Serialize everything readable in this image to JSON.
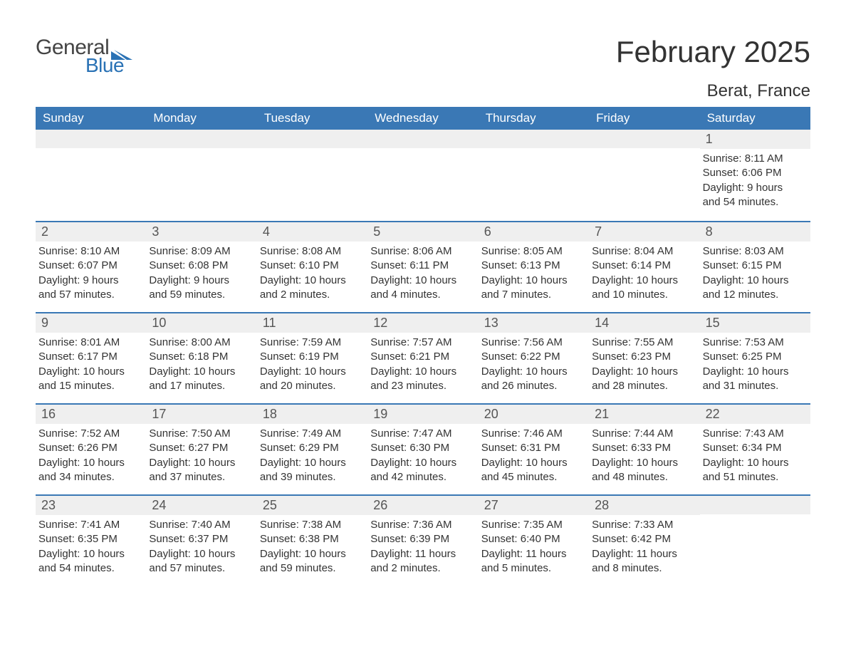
{
  "logo": {
    "general": "General",
    "blue": "Blue",
    "shape_color": "#2a72b5"
  },
  "title": "February 2025",
  "location": "Berat, France",
  "colors": {
    "header_bg": "#3a78b5",
    "header_text": "#ffffff",
    "band_bg": "#efefef",
    "text": "#333333",
    "week_divider": "#3a78b5",
    "page_bg": "#ffffff"
  },
  "fonts": {
    "title_size_pt": 32,
    "location_size_pt": 18,
    "weekday_size_pt": 13,
    "daynum_size_pt": 14,
    "body_size_pt": 11
  },
  "weekdays": [
    "Sunday",
    "Monday",
    "Tuesday",
    "Wednesday",
    "Thursday",
    "Friday",
    "Saturday"
  ],
  "weeks": [
    [
      {
        "n": "",
        "sunrise": "",
        "sunset": "",
        "daylight": ""
      },
      {
        "n": "",
        "sunrise": "",
        "sunset": "",
        "daylight": ""
      },
      {
        "n": "",
        "sunrise": "",
        "sunset": "",
        "daylight": ""
      },
      {
        "n": "",
        "sunrise": "",
        "sunset": "",
        "daylight": ""
      },
      {
        "n": "",
        "sunrise": "",
        "sunset": "",
        "daylight": ""
      },
      {
        "n": "",
        "sunrise": "",
        "sunset": "",
        "daylight": ""
      },
      {
        "n": "1",
        "sunrise": "Sunrise: 8:11 AM",
        "sunset": "Sunset: 6:06 PM",
        "daylight": "Daylight: 9 hours and 54 minutes."
      }
    ],
    [
      {
        "n": "2",
        "sunrise": "Sunrise: 8:10 AM",
        "sunset": "Sunset: 6:07 PM",
        "daylight": "Daylight: 9 hours and 57 minutes."
      },
      {
        "n": "3",
        "sunrise": "Sunrise: 8:09 AM",
        "sunset": "Sunset: 6:08 PM",
        "daylight": "Daylight: 9 hours and 59 minutes."
      },
      {
        "n": "4",
        "sunrise": "Sunrise: 8:08 AM",
        "sunset": "Sunset: 6:10 PM",
        "daylight": "Daylight: 10 hours and 2 minutes."
      },
      {
        "n": "5",
        "sunrise": "Sunrise: 8:06 AM",
        "sunset": "Sunset: 6:11 PM",
        "daylight": "Daylight: 10 hours and 4 minutes."
      },
      {
        "n": "6",
        "sunrise": "Sunrise: 8:05 AM",
        "sunset": "Sunset: 6:13 PM",
        "daylight": "Daylight: 10 hours and 7 minutes."
      },
      {
        "n": "7",
        "sunrise": "Sunrise: 8:04 AM",
        "sunset": "Sunset: 6:14 PM",
        "daylight": "Daylight: 10 hours and 10 minutes."
      },
      {
        "n": "8",
        "sunrise": "Sunrise: 8:03 AM",
        "sunset": "Sunset: 6:15 PM",
        "daylight": "Daylight: 10 hours and 12 minutes."
      }
    ],
    [
      {
        "n": "9",
        "sunrise": "Sunrise: 8:01 AM",
        "sunset": "Sunset: 6:17 PM",
        "daylight": "Daylight: 10 hours and 15 minutes."
      },
      {
        "n": "10",
        "sunrise": "Sunrise: 8:00 AM",
        "sunset": "Sunset: 6:18 PM",
        "daylight": "Daylight: 10 hours and 17 minutes."
      },
      {
        "n": "11",
        "sunrise": "Sunrise: 7:59 AM",
        "sunset": "Sunset: 6:19 PM",
        "daylight": "Daylight: 10 hours and 20 minutes."
      },
      {
        "n": "12",
        "sunrise": "Sunrise: 7:57 AM",
        "sunset": "Sunset: 6:21 PM",
        "daylight": "Daylight: 10 hours and 23 minutes."
      },
      {
        "n": "13",
        "sunrise": "Sunrise: 7:56 AM",
        "sunset": "Sunset: 6:22 PM",
        "daylight": "Daylight: 10 hours and 26 minutes."
      },
      {
        "n": "14",
        "sunrise": "Sunrise: 7:55 AM",
        "sunset": "Sunset: 6:23 PM",
        "daylight": "Daylight: 10 hours and 28 minutes."
      },
      {
        "n": "15",
        "sunrise": "Sunrise: 7:53 AM",
        "sunset": "Sunset: 6:25 PM",
        "daylight": "Daylight: 10 hours and 31 minutes."
      }
    ],
    [
      {
        "n": "16",
        "sunrise": "Sunrise: 7:52 AM",
        "sunset": "Sunset: 6:26 PM",
        "daylight": "Daylight: 10 hours and 34 minutes."
      },
      {
        "n": "17",
        "sunrise": "Sunrise: 7:50 AM",
        "sunset": "Sunset: 6:27 PM",
        "daylight": "Daylight: 10 hours and 37 minutes."
      },
      {
        "n": "18",
        "sunrise": "Sunrise: 7:49 AM",
        "sunset": "Sunset: 6:29 PM",
        "daylight": "Daylight: 10 hours and 39 minutes."
      },
      {
        "n": "19",
        "sunrise": "Sunrise: 7:47 AM",
        "sunset": "Sunset: 6:30 PM",
        "daylight": "Daylight: 10 hours and 42 minutes."
      },
      {
        "n": "20",
        "sunrise": "Sunrise: 7:46 AM",
        "sunset": "Sunset: 6:31 PM",
        "daylight": "Daylight: 10 hours and 45 minutes."
      },
      {
        "n": "21",
        "sunrise": "Sunrise: 7:44 AM",
        "sunset": "Sunset: 6:33 PM",
        "daylight": "Daylight: 10 hours and 48 minutes."
      },
      {
        "n": "22",
        "sunrise": "Sunrise: 7:43 AM",
        "sunset": "Sunset: 6:34 PM",
        "daylight": "Daylight: 10 hours and 51 minutes."
      }
    ],
    [
      {
        "n": "23",
        "sunrise": "Sunrise: 7:41 AM",
        "sunset": "Sunset: 6:35 PM",
        "daylight": "Daylight: 10 hours and 54 minutes."
      },
      {
        "n": "24",
        "sunrise": "Sunrise: 7:40 AM",
        "sunset": "Sunset: 6:37 PM",
        "daylight": "Daylight: 10 hours and 57 minutes."
      },
      {
        "n": "25",
        "sunrise": "Sunrise: 7:38 AM",
        "sunset": "Sunset: 6:38 PM",
        "daylight": "Daylight: 10 hours and 59 minutes."
      },
      {
        "n": "26",
        "sunrise": "Sunrise: 7:36 AM",
        "sunset": "Sunset: 6:39 PM",
        "daylight": "Daylight: 11 hours and 2 minutes."
      },
      {
        "n": "27",
        "sunrise": "Sunrise: 7:35 AM",
        "sunset": "Sunset: 6:40 PM",
        "daylight": "Daylight: 11 hours and 5 minutes."
      },
      {
        "n": "28",
        "sunrise": "Sunrise: 7:33 AM",
        "sunset": "Sunset: 6:42 PM",
        "daylight": "Daylight: 11 hours and 8 minutes."
      },
      {
        "n": "",
        "sunrise": "",
        "sunset": "",
        "daylight": ""
      }
    ]
  ]
}
